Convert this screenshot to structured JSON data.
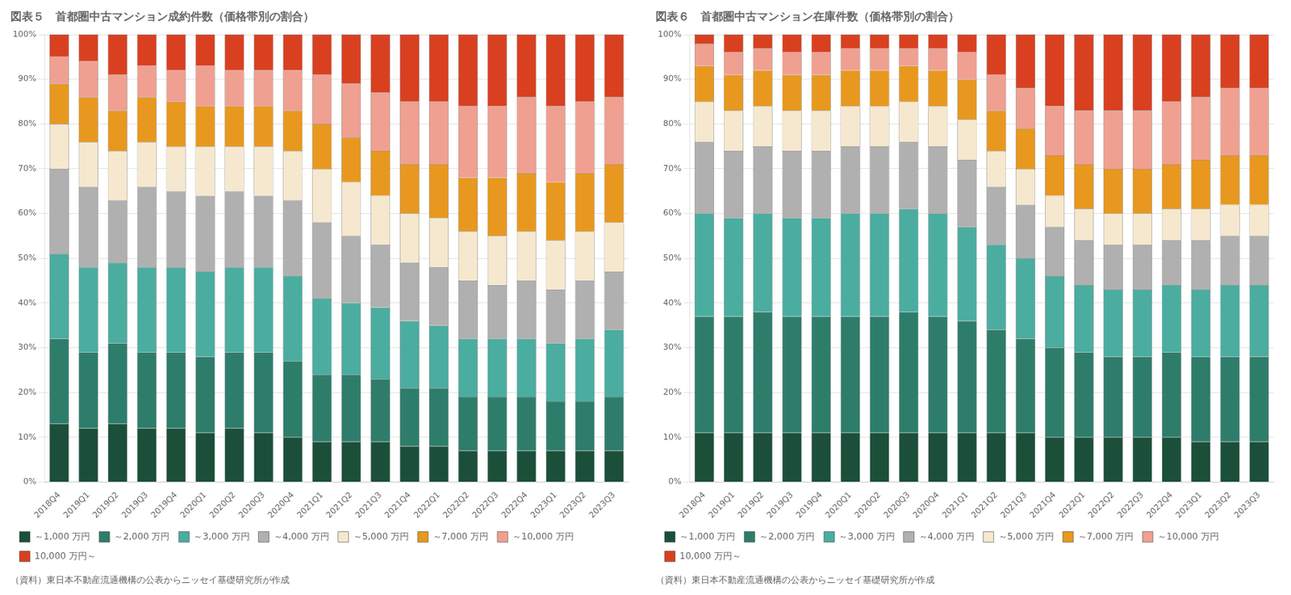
{
  "chart_data": [
    {
      "type": "bar",
      "stacked": true,
      "grid": true,
      "legend": "bottom",
      "title": "図表５　首都圏中古マンション成約件数（価格帯別の割合）",
      "annotations": [
        "（資料）東日本不動産流通機構の公表からニッセイ基礎研究所が作成"
      ],
      "categories": [
        "2018Q4",
        "2019Q1",
        "2019Q2",
        "2019Q3",
        "2019Q4",
        "2020Q1",
        "2020Q2",
        "2020Q3",
        "2020Q4",
        "2021Q1",
        "2021Q2",
        "2021Q3",
        "2021Q4",
        "2022Q1",
        "2022Q2",
        "2022Q3",
        "2022Q4",
        "2023Q1",
        "2023Q2",
        "2023Q3"
      ],
      "ylim": [
        0,
        100
      ],
      "yticks": [
        {
          "value": 0,
          "label": "0%"
        },
        {
          "value": 10,
          "label": "10%"
        },
        {
          "value": 20,
          "label": "20%"
        },
        {
          "value": 30,
          "label": "30%"
        },
        {
          "value": 40,
          "label": "40%"
        },
        {
          "value": 50,
          "label": "50%"
        },
        {
          "value": 60,
          "label": "60%"
        },
        {
          "value": 70,
          "label": "70%"
        },
        {
          "value": 80,
          "label": "80%"
        },
        {
          "value": 90,
          "label": "90%"
        },
        {
          "value": 100,
          "label": "100%"
        }
      ],
      "series": [
        {
          "name": "～1,000 万円",
          "color": "#1b4f3a",
          "values": [
            13,
            12,
            13,
            12,
            12,
            11,
            12,
            11,
            10,
            9,
            9,
            9,
            8,
            8,
            7,
            7,
            7,
            7,
            7,
            7
          ]
        },
        {
          "name": "～2,000 万円",
          "color": "#2e7d6b",
          "values": [
            19,
            17,
            18,
            17,
            17,
            17,
            17,
            18,
            17,
            15,
            15,
            14,
            13,
            13,
            12,
            12,
            12,
            11,
            11,
            12
          ]
        },
        {
          "name": "～3,000 万円",
          "color": "#4aada0",
          "values": [
            19,
            19,
            18,
            19,
            19,
            19,
            19,
            19,
            19,
            17,
            16,
            16,
            15,
            14,
            13,
            13,
            13,
            13,
            14,
            15
          ]
        },
        {
          "name": "～4,000 万円",
          "color": "#b0b0b0",
          "values": [
            19,
            18,
            14,
            18,
            17,
            17,
            17,
            16,
            17,
            17,
            15,
            14,
            13,
            13,
            13,
            12,
            13,
            12,
            13,
            13
          ]
        },
        {
          "name": "～5,000 万円",
          "color": "#f5e8ce",
          "values": [
            10,
            10,
            11,
            10,
            10,
            11,
            10,
            11,
            11,
            12,
            12,
            11,
            11,
            11,
            11,
            11,
            11,
            11,
            11,
            11
          ]
        },
        {
          "name": "～7,000 万円",
          "color": "#e8981e",
          "values": [
            9,
            10,
            9,
            10,
            10,
            9,
            9,
            9,
            9,
            10,
            10,
            10,
            11,
            12,
            12,
            13,
            13,
            13,
            13,
            13
          ]
        },
        {
          "name": "～10,000 万円",
          "color": "#f0a090",
          "values": [
            6,
            8,
            8,
            7,
            7,
            9,
            8,
            8,
            9,
            11,
            12,
            13,
            14,
            14,
            16,
            16,
            17,
            17,
            16,
            15
          ]
        },
        {
          "name": "10,000 万円～",
          "color": "#d94020",
          "values": [
            5,
            6,
            9,
            7,
            8,
            7,
            8,
            8,
            8,
            9,
            11,
            13,
            15,
            15,
            16,
            16,
            14,
            16,
            15,
            14
          ]
        }
      ]
    },
    {
      "type": "bar",
      "stacked": true,
      "grid": true,
      "legend": "bottom",
      "title": "図表６　首都圏中古マンション在庫件数（価格帯別の割合）",
      "annotations": [
        "（資料）東日本不動産流通機構の公表からニッセイ基礎研究所が作成"
      ],
      "categories": [
        "2018Q4",
        "2019Q1",
        "2019Q2",
        "2019Q3",
        "2019Q4",
        "2020Q1",
        "2020Q2",
        "2020Q3",
        "2020Q4",
        "2021Q1",
        "2021Q2",
        "2021Q3",
        "2021Q4",
        "2022Q1",
        "2022Q2",
        "2022Q3",
        "2022Q4",
        "2023Q1",
        "2023Q2",
        "2023Q3"
      ],
      "ylim": [
        0,
        100
      ],
      "yticks": [
        {
          "value": 0,
          "label": "0%"
        },
        {
          "value": 10,
          "label": "10%"
        },
        {
          "value": 20,
          "label": "20%"
        },
        {
          "value": 30,
          "label": "30%"
        },
        {
          "value": 40,
          "label": "40%"
        },
        {
          "value": 50,
          "label": "50%"
        },
        {
          "value": 60,
          "label": "60%"
        },
        {
          "value": 70,
          "label": "70%"
        },
        {
          "value": 80,
          "label": "80%"
        },
        {
          "value": 90,
          "label": "90%"
        },
        {
          "value": 100,
          "label": "100%"
        }
      ],
      "series": [
        {
          "name": "～1,000 万円",
          "color": "#1b4f3a",
          "values": [
            11,
            11,
            11,
            11,
            11,
            11,
            11,
            11,
            11,
            11,
            11,
            11,
            10,
            10,
            10,
            10,
            10,
            9,
            9,
            9
          ]
        },
        {
          "name": "～2,000 万円",
          "color": "#2e7d6b",
          "values": [
            26,
            26,
            27,
            26,
            26,
            26,
            26,
            27,
            26,
            25,
            23,
            21,
            20,
            19,
            18,
            18,
            19,
            19,
            19,
            19
          ]
        },
        {
          "name": "～3,000 万円",
          "color": "#4aada0",
          "values": [
            23,
            22,
            22,
            22,
            22,
            23,
            23,
            23,
            23,
            21,
            19,
            18,
            16,
            15,
            15,
            15,
            15,
            15,
            16,
            16
          ]
        },
        {
          "name": "～4,000 万円",
          "color": "#b0b0b0",
          "values": [
            16,
            15,
            15,
            15,
            15,
            15,
            15,
            15,
            15,
            15,
            13,
            12,
            11,
            10,
            10,
            10,
            10,
            11,
            11,
            11
          ]
        },
        {
          "name": "～5,000 万円",
          "color": "#f5e8ce",
          "values": [
            9,
            9,
            9,
            9,
            9,
            9,
            9,
            9,
            9,
            9,
            8,
            8,
            7,
            7,
            7,
            7,
            7,
            7,
            7,
            7
          ]
        },
        {
          "name": "～7,000 万円",
          "color": "#e8981e",
          "values": [
            8,
            8,
            8,
            8,
            8,
            8,
            8,
            8,
            8,
            9,
            9,
            9,
            9,
            10,
            10,
            10,
            10,
            11,
            11,
            11
          ]
        },
        {
          "name": "～10,000 万円",
          "color": "#f0a090",
          "values": [
            5,
            5,
            5,
            5,
            5,
            5,
            5,
            4,
            5,
            6,
            8,
            9,
            11,
            12,
            13,
            13,
            14,
            14,
            15,
            15
          ]
        },
        {
          "name": "10,000 万円～",
          "color": "#d94020",
          "values": [
            2,
            4,
            3,
            4,
            4,
            3,
            3,
            3,
            3,
            4,
            9,
            12,
            16,
            17,
            17,
            17,
            15,
            14,
            12,
            12
          ]
        }
      ]
    }
  ]
}
